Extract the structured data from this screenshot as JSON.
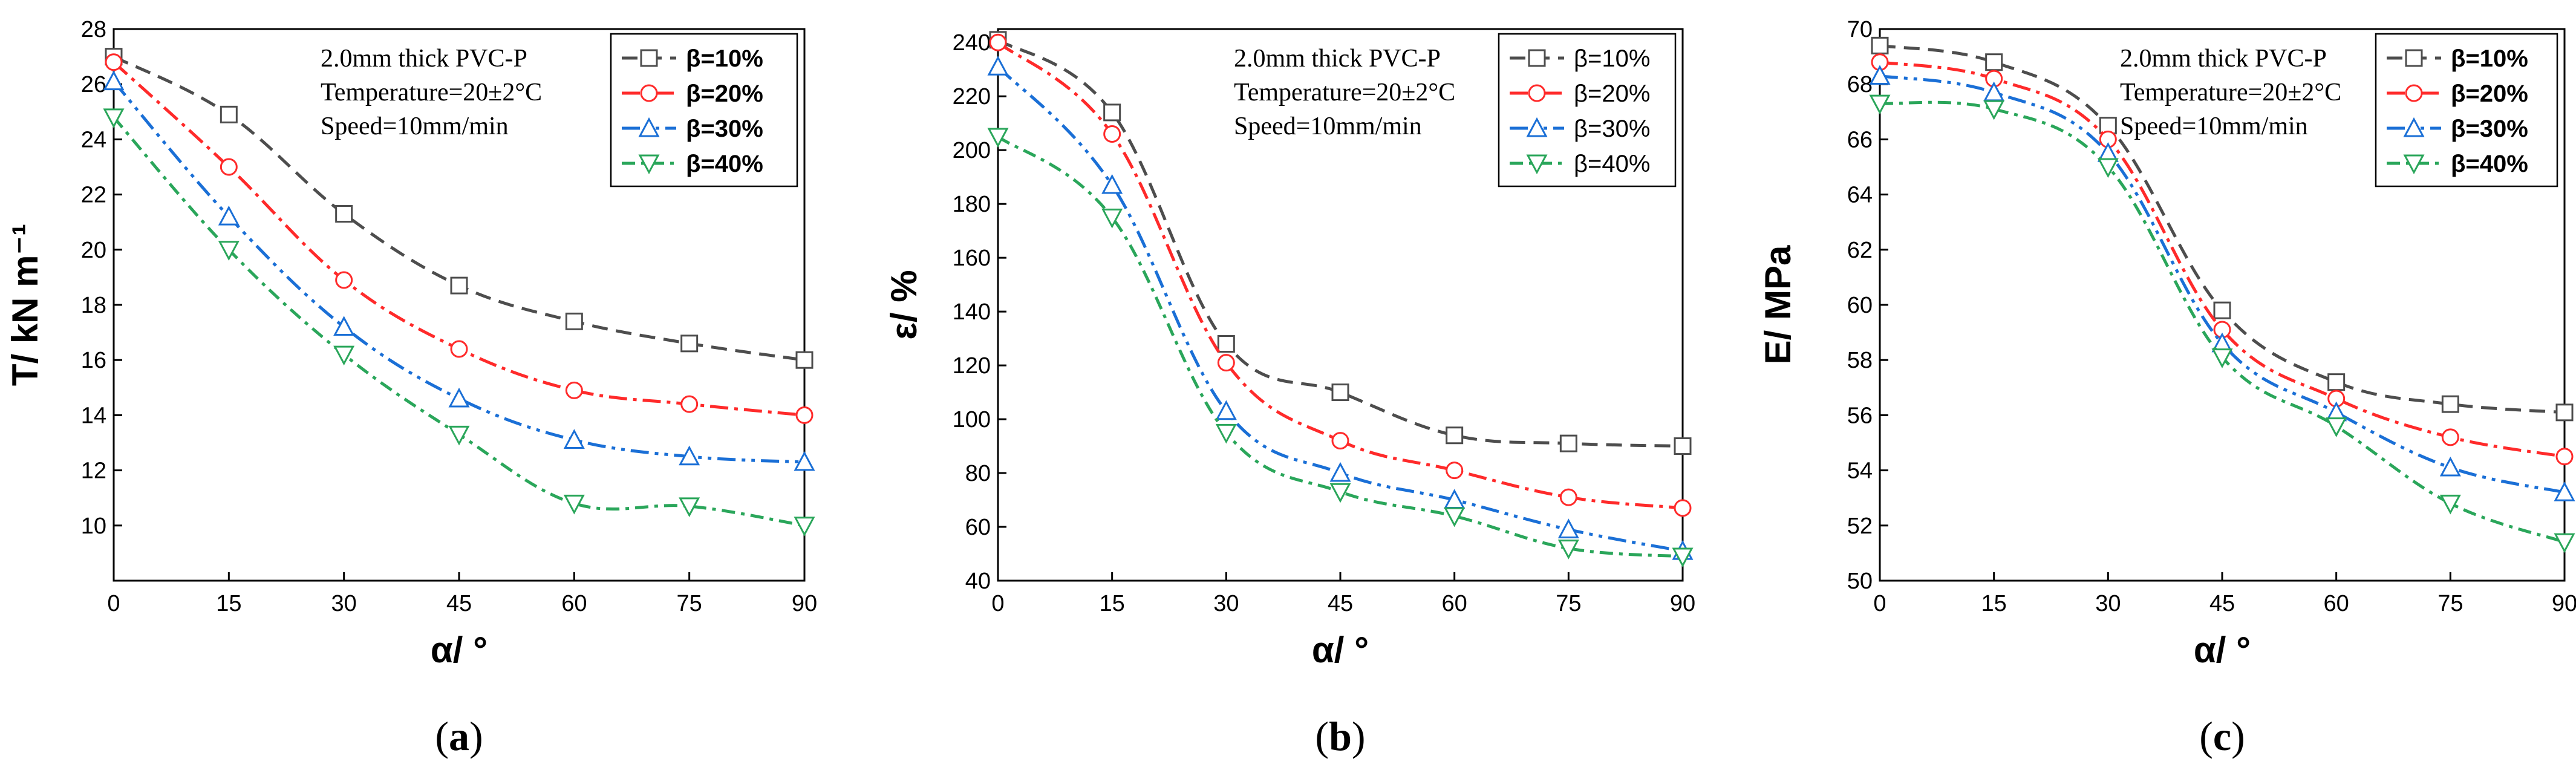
{
  "chart_data": [
    {
      "type": "line",
      "panel_label": "a",
      "xlabel": "α/ °",
      "ylabel": "T/ kN m⁻¹",
      "xlim": [
        0,
        90
      ],
      "ylim": [
        8,
        28
      ],
      "xticks": [
        0,
        15,
        30,
        45,
        60,
        75,
        90
      ],
      "yticks": [
        10,
        12,
        14,
        16,
        18,
        20,
        22,
        24,
        26,
        28
      ],
      "annotations": [
        "2.0mm thick PVC-P",
        "Temperature=20±2°C",
        "Speed=10mm/min"
      ],
      "legend_position": "top-right",
      "legend_bold": true,
      "x": [
        0,
        15,
        30,
        45,
        60,
        75,
        90
      ],
      "series": [
        {
          "name": "β=10%",
          "values": [
            27.0,
            24.9,
            21.3,
            18.7,
            17.4,
            16.6,
            16.0
          ]
        },
        {
          "name": "β=20%",
          "values": [
            26.8,
            23.0,
            18.9,
            16.4,
            14.9,
            14.4,
            14.0
          ]
        },
        {
          "name": "β=30%",
          "values": [
            26.1,
            21.2,
            17.2,
            14.6,
            13.1,
            12.5,
            12.3
          ]
        },
        {
          "name": "β=40%",
          "values": [
            24.8,
            20.0,
            16.2,
            13.3,
            10.8,
            10.7,
            10.0
          ]
        }
      ]
    },
    {
      "type": "line",
      "panel_label": "b",
      "xlabel": "α/ °",
      "ylabel": "ε/ %",
      "xlim": [
        0,
        90
      ],
      "ylim": [
        40,
        245
      ],
      "xticks": [
        0,
        15,
        30,
        45,
        60,
        75,
        90
      ],
      "yticks": [
        40,
        60,
        80,
        100,
        120,
        140,
        160,
        180,
        200,
        220,
        240
      ],
      "annotations": [
        "2.0mm thick PVC-P",
        "Temperature=20±2°C",
        "Speed=10mm/min"
      ],
      "legend_position": "top-right",
      "legend_bold": false,
      "x": [
        0,
        15,
        30,
        45,
        60,
        75,
        90
      ],
      "series": [
        {
          "name": "β=10%",
          "values": [
            241,
            214,
            128,
            110,
            94,
            91,
            90
          ]
        },
        {
          "name": "β=20%",
          "values": [
            240,
            206,
            121,
            92,
            81,
            71,
            67
          ]
        },
        {
          "name": "β=30%",
          "values": [
            231,
            187,
            103,
            80,
            70,
            59,
            51
          ]
        },
        {
          "name": "β=40%",
          "values": [
            205,
            175,
            95,
            73,
            64,
            52,
            49
          ]
        }
      ]
    },
    {
      "type": "line",
      "panel_label": "c",
      "xlabel": "α/ °",
      "ylabel": "E/ MPa",
      "xlim": [
        0,
        90
      ],
      "ylim": [
        50,
        70
      ],
      "xticks": [
        0,
        15,
        30,
        45,
        60,
        75,
        90
      ],
      "yticks": [
        50,
        52,
        54,
        56,
        58,
        60,
        62,
        64,
        66,
        68,
        70
      ],
      "annotations": [
        "2.0mm thick PVC-P",
        "Temperature=20±2°C",
        "Speed=10mm/min"
      ],
      "legend_position": "top-right",
      "legend_bold": true,
      "x": [
        0,
        15,
        30,
        45,
        60,
        75,
        90
      ],
      "series": [
        {
          "name": "β=10%",
          "values": [
            69.4,
            68.8,
            66.5,
            59.8,
            57.2,
            56.4,
            56.1
          ]
        },
        {
          "name": "β=20%",
          "values": [
            68.8,
            68.2,
            66.0,
            59.1,
            56.6,
            55.2,
            54.5
          ]
        },
        {
          "name": "β=30%",
          "values": [
            68.3,
            67.7,
            65.5,
            58.6,
            56.1,
            54.1,
            53.2
          ]
        },
        {
          "name": "β=40%",
          "values": [
            67.3,
            67.1,
            65.0,
            58.1,
            55.6,
            52.8,
            51.4
          ]
        }
      ]
    }
  ],
  "series_style": [
    {
      "color": "#4d4d4d",
      "marker": "square",
      "dash": "26,14"
    },
    {
      "color": "#ff2a2a",
      "marker": "circle",
      "dash": "30,10,6,10"
    },
    {
      "color": "#1a6fd6",
      "marker": "triangle-up",
      "dash": "30,10,6,10,6,10"
    },
    {
      "color": "#2aa65a",
      "marker": "triangle-down",
      "dash": "22,10,6,10"
    }
  ]
}
